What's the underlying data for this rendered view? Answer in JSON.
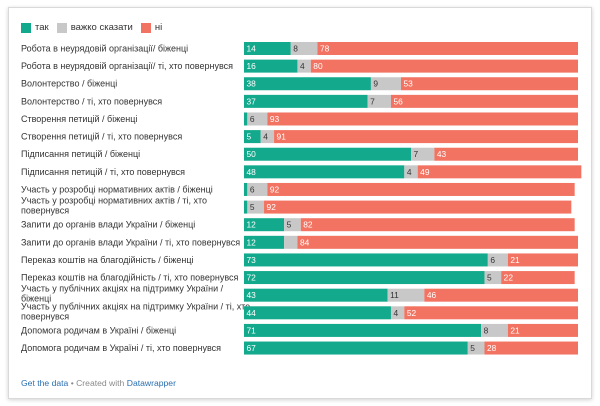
{
  "colors": {
    "yes": "#12a98c",
    "unsure": "#c8c8c8",
    "no": "#f27361"
  },
  "chart_data": {
    "type": "bar",
    "stacked": true,
    "orientation": "horizontal",
    "legend_position": "top-left",
    "xlim": [
      0,
      100
    ],
    "categories": [
      [
        "Робота в неурядовій організації/ біженці"
      ],
      [
        "Робота в неурядовій організації/ ті, хто повернувся"
      ],
      [
        "Волонтерство / біженці"
      ],
      [
        "Волонтерство / ті, хто повернувся"
      ],
      [
        "Створення петицій / біженці"
      ],
      [
        "Створення петицій / ті, хто повернувся"
      ],
      [
        "Підписання петицій / біженці"
      ],
      [
        "Підписання петицій / ті, хто повернувся"
      ],
      [
        "Участь у розробці нормативних актів / біженці"
      ],
      [
        "Участь у розробці нормативних актів / ті, хто",
        "повернувся"
      ],
      [
        "Запити до органів влади України / біженці"
      ],
      [
        "Запити до органів влади України / ті, хто повернувся"
      ],
      [
        "Переказ коштів на благодійність / біженці"
      ],
      [
        "Переказ коштів на благодійність / ті, хто повернувся"
      ],
      [
        "Участь у публічних акціях на підтримку України /",
        "біженці"
      ],
      [
        "Участь у публічних акціях на підтримку України / ті, хто",
        "повернувся"
      ],
      [
        "Допомога родичам в Україні / біженці"
      ],
      [
        "Допомога родичам в Україні / ті, хто повернувся"
      ]
    ],
    "series": [
      {
        "name": "так",
        "color_key": "yes",
        "values": [
          14,
          16,
          38,
          37,
          1,
          5,
          50,
          48,
          1,
          1,
          12,
          12,
          73,
          72,
          43,
          44,
          71,
          67
        ]
      },
      {
        "name": "важко сказати",
        "color_key": "unsure",
        "values": [
          8,
          4,
          9,
          7,
          6,
          4,
          7,
          4,
          6,
          5,
          5,
          4,
          6,
          5,
          11,
          4,
          8,
          5
        ]
      },
      {
        "name": "ні",
        "color_key": "no",
        "values": [
          78,
          80,
          53,
          56,
          93,
          91,
          43,
          49,
          92,
          92,
          82,
          84,
          21,
          22,
          46,
          52,
          21,
          28
        ]
      }
    ],
    "shown_labels": {
      "yes": [
        14,
        16,
        38,
        37,
        null,
        5,
        50,
        48,
        null,
        null,
        12,
        12,
        73,
        72,
        43,
        44,
        71,
        67
      ],
      "unsure": [
        8,
        4,
        9,
        7,
        6,
        4,
        7,
        4,
        6,
        5,
        5,
        null,
        6,
        5,
        11,
        4,
        8,
        5
      ],
      "no": [
        78,
        80,
        53,
        56,
        93,
        91,
        43,
        49,
        92,
        92,
        82,
        84,
        21,
        22,
        46,
        52,
        21,
        28
      ]
    }
  },
  "footer": {
    "get_data": "Get the data",
    "separator": " • Created with ",
    "credit": "Datawrapper"
  }
}
